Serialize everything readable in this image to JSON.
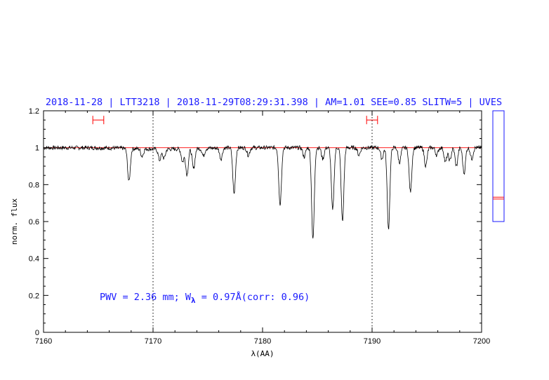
{
  "chart_data": {
    "type": "line",
    "title": "2018-11-28 | LTT3218 | 2018-11-29T08:29:31.398 | AM=1.01  SEE=0.85  SLITW=5 | UVES",
    "xlabel": "λ(AA)",
    "ylabel": "norm. flux",
    "xlim": [
      7160,
      7200
    ],
    "ylim": [
      0,
      1.2
    ],
    "x_ticks": [
      "7160",
      "7170",
      "7180",
      "7190",
      "7200"
    ],
    "y_ticks": [
      "0",
      "0.2",
      "0.4",
      "0.6",
      "0.8",
      "1",
      "1.2"
    ],
    "vertical_dotted_lines_x": [
      7170,
      7190
    ],
    "continuum_level": 1.0,
    "fit_ranges": [
      [
        7164.5,
        7165.5
      ],
      [
        7189.5,
        7190.5
      ]
    ],
    "fit_range_marker_y": 1.15,
    "annotation": {
      "pwv": "PWV  =  2.36  mm;  W",
      "subscript": "λ",
      "rest": "  =  0.97Å(corr:  0.96)"
    },
    "absorption_lines": [
      {
        "x": 7167.8,
        "depth": 0.18
      },
      {
        "x": 7169.0,
        "depth": 0.04
      },
      {
        "x": 7170.6,
        "depth": 0.06
      },
      {
        "x": 7171.0,
        "depth": 0.05
      },
      {
        "x": 7172.7,
        "depth": 0.07
      },
      {
        "x": 7173.1,
        "depth": 0.14
      },
      {
        "x": 7173.7,
        "depth": 0.11
      },
      {
        "x": 7174.6,
        "depth": 0.04
      },
      {
        "x": 7176.2,
        "depth": 0.06
      },
      {
        "x": 7177.4,
        "depth": 0.25
      },
      {
        "x": 7178.7,
        "depth": 0.04
      },
      {
        "x": 7181.6,
        "depth": 0.31
      },
      {
        "x": 7183.8,
        "depth": 0.05
      },
      {
        "x": 7184.6,
        "depth": 0.5
      },
      {
        "x": 7185.5,
        "depth": 0.06
      },
      {
        "x": 7186.4,
        "depth": 0.34
      },
      {
        "x": 7187.3,
        "depth": 0.4
      },
      {
        "x": 7188.8,
        "depth": 0.04
      },
      {
        "x": 7190.9,
        "depth": 0.06
      },
      {
        "x": 7191.5,
        "depth": 0.44
      },
      {
        "x": 7192.5,
        "depth": 0.08
      },
      {
        "x": 7193.5,
        "depth": 0.24
      },
      {
        "x": 7194.9,
        "depth": 0.1
      },
      {
        "x": 7195.9,
        "depth": 0.04
      },
      {
        "x": 7196.7,
        "depth": 0.08
      },
      {
        "x": 7197.1,
        "depth": 0.07
      },
      {
        "x": 7197.7,
        "depth": 0.1
      },
      {
        "x": 7198.4,
        "depth": 0.14
      },
      {
        "x": 7199.1,
        "depth": 0.06
      }
    ],
    "series": [
      {
        "color": "#000000"
      },
      {
        "color": "#ff0000"
      }
    ]
  },
  "side_panel": {
    "markers": [
      0.722,
      0.732
    ],
    "ylim": [
      0.6,
      1.2
    ]
  }
}
